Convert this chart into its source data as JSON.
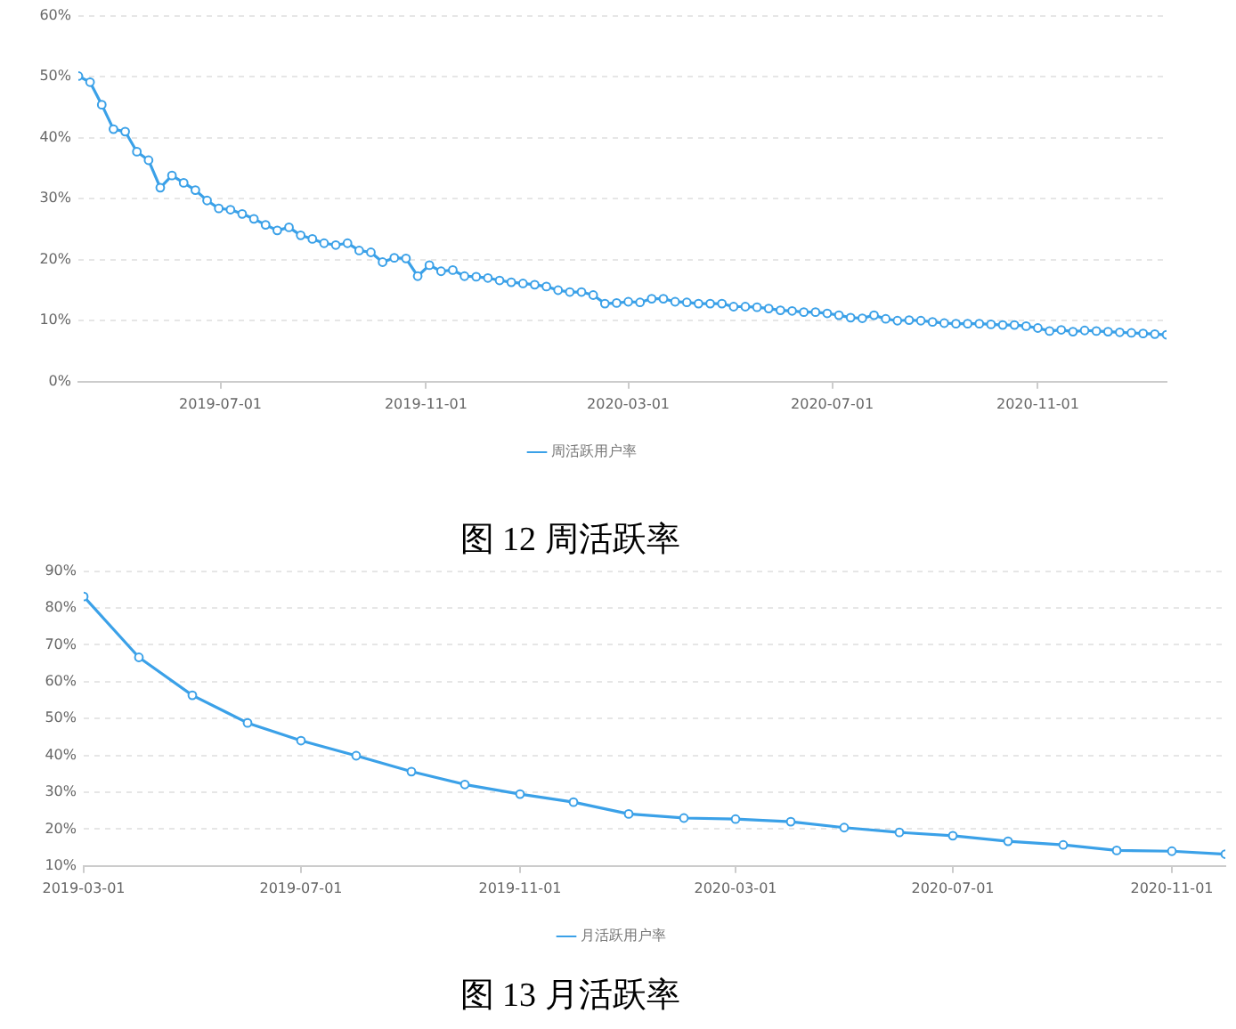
{
  "chart_data": [
    {
      "type": "line",
      "annotations": [
        "图 12 周活跃率"
      ],
      "legend": "bottom",
      "grid": "y",
      "marker": "circle",
      "line_style": "solid",
      "xlim": [
        "2019-04-07",
        "2021-01-17"
      ],
      "xticks": [
        "2019-07-01",
        "2019-11-01",
        "2020-03-01",
        "2020-07-01",
        "2020-11-01"
      ],
      "ylim": [
        0,
        60
      ],
      "yticks": [
        {
          "value": 0,
          "label": "0%"
        },
        {
          "value": 10,
          "label": "10%"
        },
        {
          "value": 20,
          "label": "20%"
        },
        {
          "value": 30,
          "label": "30%"
        },
        {
          "value": 40,
          "label": "40%"
        },
        {
          "value": 50,
          "label": "50%"
        },
        {
          "value": 60,
          "label": "60%"
        }
      ],
      "x": [
        "2019-04-07",
        "2019-04-14",
        "2019-04-21",
        "2019-04-28",
        "2019-05-05",
        "2019-05-12",
        "2019-05-19",
        "2019-05-26",
        "2019-06-02",
        "2019-06-09",
        "2019-06-16",
        "2019-06-23",
        "2019-06-30",
        "2019-07-07",
        "2019-07-14",
        "2019-07-21",
        "2019-07-28",
        "2019-08-04",
        "2019-08-11",
        "2019-08-18",
        "2019-08-25",
        "2019-09-01",
        "2019-09-08",
        "2019-09-15",
        "2019-09-22",
        "2019-09-29",
        "2019-10-06",
        "2019-10-13",
        "2019-10-20",
        "2019-10-27",
        "2019-11-03",
        "2019-11-10",
        "2019-11-17",
        "2019-11-24",
        "2019-12-01",
        "2019-12-08",
        "2019-12-15",
        "2019-12-22",
        "2019-12-29",
        "2020-01-05",
        "2020-01-12",
        "2020-01-19",
        "2020-01-26",
        "2020-02-02",
        "2020-02-09",
        "2020-02-16",
        "2020-02-23",
        "2020-03-01",
        "2020-03-08",
        "2020-03-15",
        "2020-03-22",
        "2020-03-29",
        "2020-04-05",
        "2020-04-12",
        "2020-04-19",
        "2020-04-26",
        "2020-05-03",
        "2020-05-10",
        "2020-05-17",
        "2020-05-24",
        "2020-05-31",
        "2020-06-07",
        "2020-06-14",
        "2020-06-21",
        "2020-06-28",
        "2020-07-05",
        "2020-07-12",
        "2020-07-19",
        "2020-07-26",
        "2020-08-02",
        "2020-08-09",
        "2020-08-16",
        "2020-08-23",
        "2020-08-30",
        "2020-09-06",
        "2020-09-13",
        "2020-09-20",
        "2020-09-27",
        "2020-10-04",
        "2020-10-11",
        "2020-10-18",
        "2020-10-25",
        "2020-11-01",
        "2020-11-08",
        "2020-11-15",
        "2020-11-22",
        "2020-11-29",
        "2020-12-06",
        "2020-12-13",
        "2020-12-20",
        "2020-12-27",
        "2021-01-03",
        "2021-01-10",
        "2021-01-17"
      ],
      "series": [
        {
          "name": "周活跃用户率",
          "color": "#3ba1e8",
          "values": [
            50.1,
            49.1,
            45.4,
            41.4,
            41,
            37.7,
            36.3,
            31.8,
            33.8,
            32.6,
            31.4,
            29.7,
            28.4,
            28.2,
            27.5,
            26.7,
            25.7,
            24.8,
            25.3,
            24,
            23.4,
            22.7,
            22.4,
            22.7,
            21.5,
            21.2,
            19.6,
            20.3,
            20.2,
            17.3,
            19.1,
            18.1,
            18.3,
            17.3,
            17.2,
            17,
            16.6,
            16.3,
            16.1,
            15.9,
            15.6,
            15,
            14.7,
            14.7,
            14.2,
            12.8,
            12.9,
            13.1,
            13,
            13.6,
            13.6,
            13.1,
            13,
            12.8,
            12.8,
            12.8,
            12.3,
            12.3,
            12.2,
            12,
            11.7,
            11.6,
            11.4,
            11.4,
            11.2,
            10.9,
            10.5,
            10.4,
            10.9,
            10.3,
            10,
            10.1,
            10,
            9.8,
            9.6,
            9.5,
            9.5,
            9.5,
            9.4,
            9.3,
            9.3,
            9.1,
            8.8,
            8.3,
            8.5,
            8.2,
            8.4,
            8.3,
            8.2,
            8.1,
            8,
            7.9,
            7.8,
            7.7
          ]
        }
      ]
    },
    {
      "type": "line",
      "annotations": [
        "图 13 月活跃率"
      ],
      "legend": "bottom",
      "grid": "y",
      "marker": "circle",
      "line_style": "solid",
      "xlim": [
        "2019-03-01",
        "2020-12-01"
      ],
      "xticks": [
        "2019-03-01",
        "2019-07-01",
        "2019-11-01",
        "2020-03-01",
        "2020-07-01",
        "2020-11-01"
      ],
      "ylim": [
        10,
        90
      ],
      "yticks": [
        {
          "value": 10,
          "label": "10%"
        },
        {
          "value": 20,
          "label": "20%"
        },
        {
          "value": 30,
          "label": "30%"
        },
        {
          "value": 40,
          "label": "40%"
        },
        {
          "value": 50,
          "label": "50%"
        },
        {
          "value": 60,
          "label": "60%"
        },
        {
          "value": 70,
          "label": "70%"
        },
        {
          "value": 80,
          "label": "80%"
        },
        {
          "value": 90,
          "label": "90%"
        }
      ],
      "x": [
        "2019-03-01",
        "2019-04-01",
        "2019-05-01",
        "2019-06-01",
        "2019-07-01",
        "2019-08-01",
        "2019-09-01",
        "2019-10-01",
        "2019-11-01",
        "2019-12-01",
        "2020-01-01",
        "2020-02-01",
        "2020-03-01",
        "2020-04-01",
        "2020-05-01",
        "2020-06-01",
        "2020-07-01",
        "2020-08-01",
        "2020-09-01",
        "2020-10-01",
        "2020-11-01",
        "2020-12-01"
      ],
      "series": [
        {
          "name": "月活跃用户率",
          "color": "#3ba1e8",
          "values": [
            83.1,
            66.6,
            56.3,
            48.8,
            44,
            39.9,
            35.6,
            32.1,
            29.5,
            27.3,
            24.1,
            23,
            22.7,
            22,
            20.4,
            19.1,
            18.2,
            16.7,
            15.7,
            14.2,
            14,
            13.2
          ]
        }
      ]
    }
  ]
}
